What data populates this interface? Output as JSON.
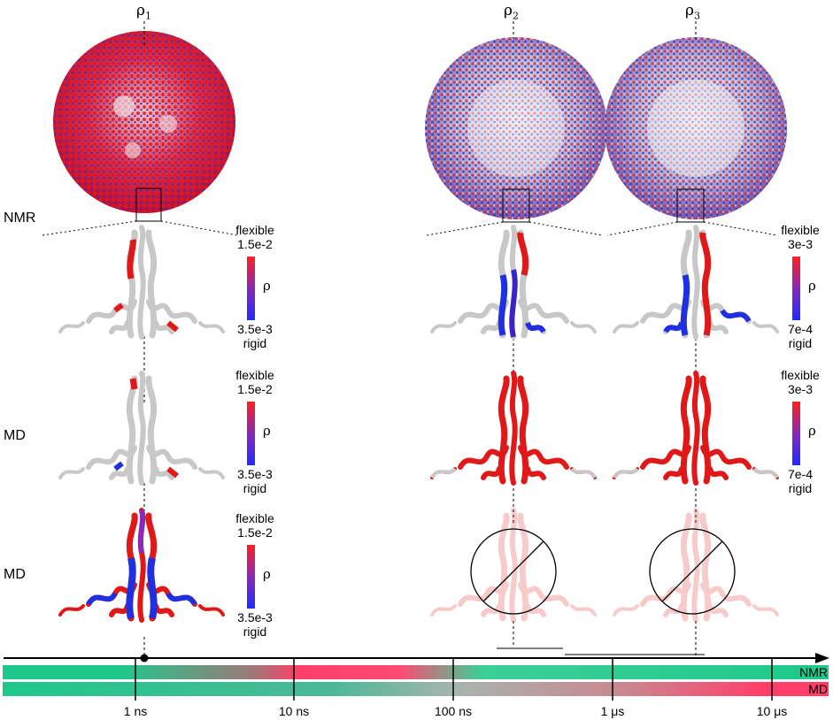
{
  "columns": {
    "rho1": {
      "symbol": "ρ",
      "sub": "1"
    },
    "rho2": {
      "symbol": "ρ",
      "sub": "2"
    },
    "rho3": {
      "symbol": "ρ",
      "sub": "3"
    }
  },
  "row_labels": [
    "NMR",
    "MD",
    "MD"
  ],
  "legends": {
    "nmr_left": {
      "top": "flexible",
      "top_val": "1.5e-2",
      "bot_val": "3.5e-3",
      "bottom": "rigid",
      "symbol": "ρ"
    },
    "md1_left": {
      "top": "flexible",
      "top_val": "1.5e-2",
      "bot_val": "3.5e-3",
      "bottom": "rigid",
      "symbol": "ρ"
    },
    "md2_left": {
      "top": "flexible",
      "top_val": "1.5e-2",
      "bot_val": "3.5e-3",
      "bottom": "rigid",
      "symbol": "ρ"
    },
    "nmr_right": {
      "top": "flexible",
      "top_val": "3e-3",
      "bot_val": "7e-4",
      "bottom": "rigid",
      "symbol": "ρ"
    },
    "md_right": {
      "top": "flexible",
      "top_val": "3e-3",
      "bot_val": "7e-4",
      "bottom": "rigid",
      "symbol": "ρ"
    }
  },
  "timescale": {
    "ticks": [
      "1 ns",
      "10 ns",
      "100 ns",
      "1 μs",
      "10 μs"
    ],
    "bars": [
      "NMR",
      "MD"
    ]
  },
  "colors": {
    "flexible": "#ff1f1f",
    "rigid": "#1f2bff",
    "neutral": "#c8c8c8",
    "timescale_green": "#1ec88c",
    "timescale_pink": "#ff3f6a"
  }
}
